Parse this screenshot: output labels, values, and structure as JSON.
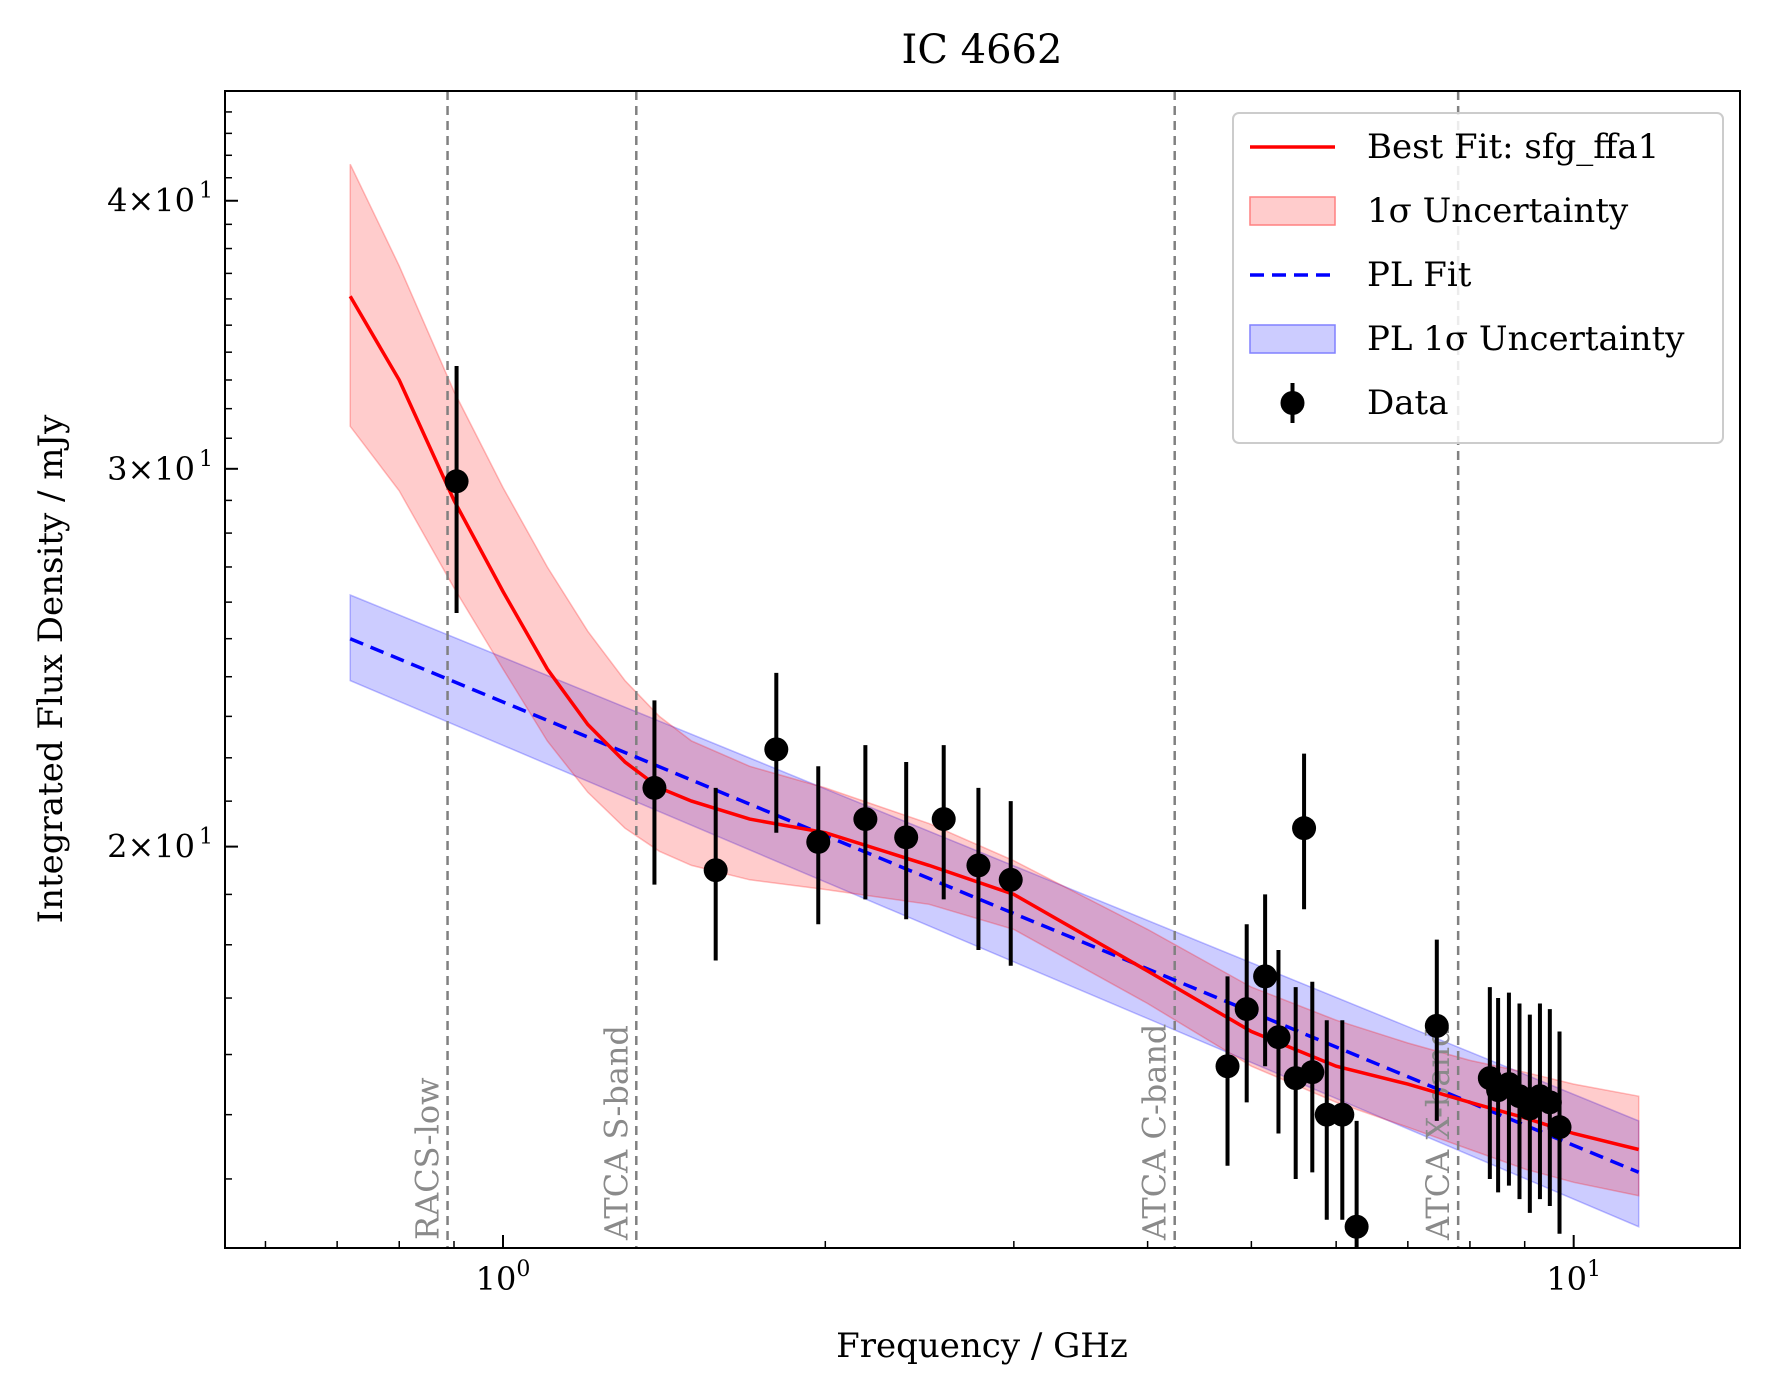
{
  "chart_data": {
    "type": "scatter",
    "title": "IC 4662",
    "xlabel": "Frequency / GHz",
    "ylabel": "Integrated Flux Density / mJy",
    "xscale": "log",
    "yscale": "log",
    "xlim": [
      0.55,
      14.3
    ],
    "ylim": [
      13.0,
      45.0
    ],
    "x_ticks": [
      {
        "value": 1,
        "label": "10",
        "exp": "0"
      },
      {
        "value": 10,
        "label": "10",
        "exp": "1"
      }
    ],
    "y_ticks": [
      {
        "value": 20,
        "label": "2×10",
        "exp": "1"
      },
      {
        "value": 30,
        "label": "3×10",
        "exp": "1"
      },
      {
        "value": 40,
        "label": "4×10",
        "exp": "1"
      }
    ],
    "legend_position": "top-right",
    "legend": [
      {
        "label": "Best Fit: sfg_ffa1",
        "kind": "line",
        "color": "#ff0000"
      },
      {
        "label": "1σ Uncertainty",
        "kind": "band",
        "color": "#ff8080"
      },
      {
        "label": "PL Fit",
        "kind": "dashed",
        "color": "#0000ff"
      },
      {
        "label": "PL 1σ Uncertainty",
        "kind": "band",
        "color": "#8080ff"
      },
      {
        "label": "Data",
        "kind": "errorbar",
        "color": "#000000"
      }
    ],
    "bands": [
      {
        "label": "RACS-low",
        "freq": 0.8876
      },
      {
        "label": "ATCA S-band",
        "freq": 1.332
      },
      {
        "label": "ATCA C-band",
        "freq": 4.24
      },
      {
        "label": "ATCA X-band",
        "freq": 7.8
      }
    ],
    "series": [
      {
        "name": "Data",
        "points": [
          {
            "x": 0.905,
            "y": 29.6,
            "err": 3.9
          },
          {
            "x": 1.385,
            "y": 21.3,
            "err": 2.1
          },
          {
            "x": 1.58,
            "y": 19.5,
            "err": 1.8
          },
          {
            "x": 1.8,
            "y": 22.2,
            "err": 1.9
          },
          {
            "x": 1.97,
            "y": 20.1,
            "err": 1.7
          },
          {
            "x": 2.18,
            "y": 20.6,
            "err": 1.7
          },
          {
            "x": 2.38,
            "y": 20.2,
            "err": 1.7
          },
          {
            "x": 2.58,
            "y": 20.6,
            "err": 1.7
          },
          {
            "x": 2.78,
            "y": 19.6,
            "err": 1.7
          },
          {
            "x": 2.98,
            "y": 19.3,
            "err": 1.7
          },
          {
            "x": 4.75,
            "y": 15.8,
            "err": 1.6
          },
          {
            "x": 4.95,
            "y": 16.8,
            "err": 1.6
          },
          {
            "x": 5.15,
            "y": 17.4,
            "err": 1.6
          },
          {
            "x": 5.3,
            "y": 16.3,
            "err": 1.6
          },
          {
            "x": 5.5,
            "y": 15.6,
            "err": 1.6
          },
          {
            "x": 5.6,
            "y": 20.4,
            "err": 1.7
          },
          {
            "x": 5.7,
            "y": 15.7,
            "err": 1.6
          },
          {
            "x": 5.88,
            "y": 15.0,
            "err": 1.6
          },
          {
            "x": 6.08,
            "y": 15.0,
            "err": 1.6
          },
          {
            "x": 6.27,
            "y": 13.3,
            "err": 1.6
          },
          {
            "x": 7.45,
            "y": 16.5,
            "err": 1.6
          },
          {
            "x": 8.35,
            "y": 15.6,
            "err": 1.6
          },
          {
            "x": 8.5,
            "y": 15.4,
            "err": 1.6
          },
          {
            "x": 8.7,
            "y": 15.5,
            "err": 1.6
          },
          {
            "x": 8.9,
            "y": 15.3,
            "err": 1.6
          },
          {
            "x": 9.1,
            "y": 15.1,
            "err": 1.6
          },
          {
            "x": 9.3,
            "y": 15.3,
            "err": 1.6
          },
          {
            "x": 9.5,
            "y": 15.2,
            "err": 1.6
          },
          {
            "x": 9.7,
            "y": 14.8,
            "err": 1.6
          }
        ]
      },
      {
        "name": "Best Fit: sfg_ffa1",
        "x": [
          0.72,
          0.8,
          0.9,
          1.0,
          1.1,
          1.2,
          1.3,
          1.4,
          1.5,
          1.7,
          2.0,
          2.5,
          3.0,
          4.0,
          5.0,
          6.0,
          7.0,
          8.0,
          9.0,
          10.0,
          11.5
        ],
        "y": [
          36.1,
          33.0,
          29.0,
          26.3,
          24.2,
          22.8,
          21.9,
          21.3,
          21.0,
          20.6,
          20.3,
          19.6,
          19.0,
          17.5,
          16.4,
          15.8,
          15.5,
          15.2,
          14.95,
          14.7,
          14.45
        ]
      },
      {
        "name": "1σ Uncertainty",
        "x": [
          0.72,
          0.8,
          0.9,
          1.0,
          1.1,
          1.2,
          1.3,
          1.4,
          1.5,
          1.7,
          2.0,
          2.5,
          3.0,
          4.0,
          5.0,
          6.0,
          7.0,
          8.0,
          9.0,
          10.0,
          11.5
        ],
        "lower": [
          31.4,
          29.3,
          26.4,
          24.2,
          22.4,
          21.2,
          20.4,
          19.9,
          19.6,
          19.3,
          19.1,
          18.8,
          18.3,
          16.9,
          15.8,
          15.2,
          14.8,
          14.45,
          14.15,
          13.95,
          13.75
        ],
        "upper": [
          41.6,
          37.3,
          32.6,
          29.4,
          27.0,
          25.2,
          23.9,
          23.0,
          22.4,
          21.8,
          21.3,
          20.5,
          19.7,
          18.3,
          17.2,
          16.6,
          16.2,
          15.9,
          15.7,
          15.5,
          15.3
        ]
      },
      {
        "name": "PL Fit",
        "x": [
          0.72,
          11.5
        ],
        "y": [
          25.0,
          14.1
        ]
      },
      {
        "name": "PL 1σ Uncertainty",
        "x": [
          0.72,
          11.5
        ],
        "lower": [
          23.9,
          13.3
        ],
        "upper": [
          26.2,
          14.9
        ]
      }
    ]
  }
}
